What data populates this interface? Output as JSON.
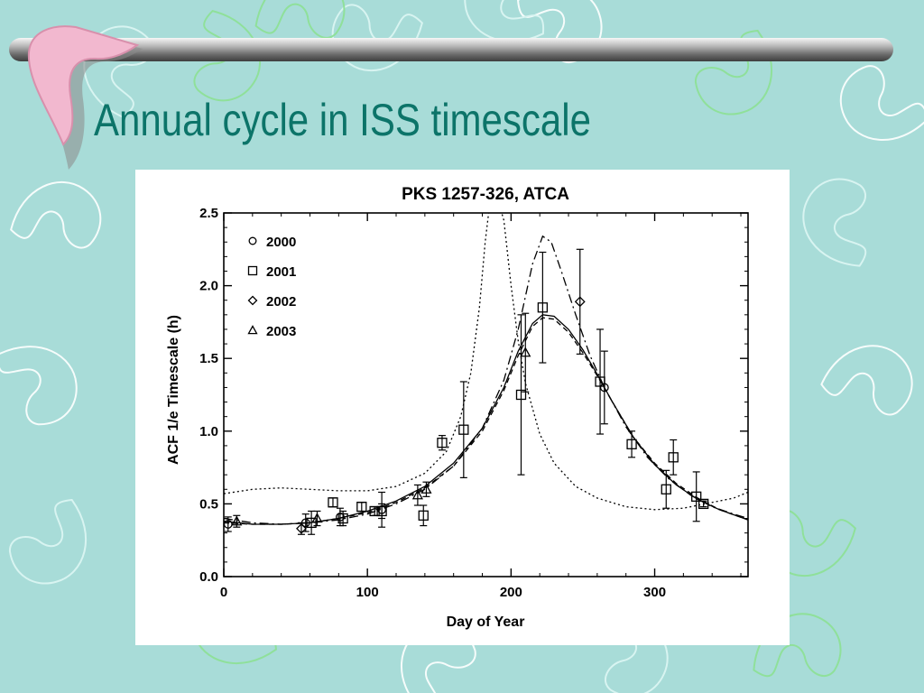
{
  "slide": {
    "title": "Annual cycle in ISS timescale"
  },
  "colors": {
    "background": "#a8dcd8",
    "title": "#0c7469",
    "accent_pink": "#f2b8cf"
  },
  "chart_data": {
    "type": "scatter",
    "title": "PKS 1257-326, ATCA",
    "xlabel": "Day of Year",
    "ylabel": "ACF 1/e Timescale (h)",
    "xlim": [
      0,
      365
    ],
    "ylim": [
      0,
      2.5
    ],
    "xticks": [
      "0",
      "100",
      "200",
      "300"
    ],
    "yticks": [
      "0.0",
      "0.5",
      "1.0",
      "1.5",
      "2.0",
      "2.5"
    ],
    "legend_position": "top-left",
    "series": [
      {
        "name": "2000",
        "marker": "circle",
        "points": [
          [
            3,
            0.36
          ],
          [
            57,
            0.37
          ],
          [
            81,
            0.41
          ],
          [
            110,
            0.46
          ],
          [
            265,
            1.3
          ]
        ],
        "err": [
          0.05,
          0.06,
          0.06,
          0.12,
          0.25
        ]
      },
      {
        "name": "2001",
        "marker": "square",
        "points": [
          [
            61,
            0.37
          ],
          [
            76,
            0.51
          ],
          [
            83,
            0.4
          ],
          [
            96,
            0.48
          ],
          [
            105,
            0.45
          ],
          [
            110,
            0.45
          ],
          [
            139,
            0.42
          ],
          [
            152,
            0.92
          ],
          [
            167,
            1.01
          ],
          [
            207,
            1.25
          ],
          [
            222,
            1.85
          ],
          [
            262,
            1.34
          ],
          [
            284,
            0.91
          ],
          [
            308,
            0.6
          ],
          [
            313,
            0.82
          ],
          [
            329,
            0.55
          ],
          [
            334,
            0.5
          ]
        ],
        "err": [
          0.08,
          0.03,
          0.05,
          0.03,
          0.03,
          0.05,
          0.07,
          0.05,
          0.33,
          0.55,
          0.38,
          0.36,
          0.09,
          0.13,
          0.12,
          0.17,
          0.02
        ]
      },
      {
        "name": "2002",
        "marker": "diamond",
        "points": [
          [
            54,
            0.33
          ],
          [
            248,
            1.89
          ]
        ],
        "err": [
          0.04,
          0.36
        ]
      },
      {
        "name": "2003",
        "marker": "triangle",
        "points": [
          [
            9,
            0.38
          ],
          [
            65,
            0.4
          ],
          [
            135,
            0.56
          ],
          [
            141,
            0.6
          ],
          [
            210,
            1.54
          ]
        ],
        "err": [
          0.04,
          0.05,
          0.07,
          0.05,
          0.27
        ]
      }
    ],
    "model_curves": [
      {
        "style": "solid",
        "points": [
          [
            0,
            0.38
          ],
          [
            20,
            0.36
          ],
          [
            40,
            0.36
          ],
          [
            60,
            0.37
          ],
          [
            80,
            0.4
          ],
          [
            100,
            0.45
          ],
          [
            120,
            0.52
          ],
          [
            140,
            0.62
          ],
          [
            160,
            0.78
          ],
          [
            180,
            1.02
          ],
          [
            195,
            1.3
          ],
          [
            205,
            1.55
          ],
          [
            215,
            1.74
          ],
          [
            222,
            1.8
          ],
          [
            230,
            1.79
          ],
          [
            240,
            1.7
          ],
          [
            250,
            1.56
          ],
          [
            260,
            1.39
          ],
          [
            270,
            1.21
          ],
          [
            285,
            0.96
          ],
          [
            300,
            0.77
          ],
          [
            315,
            0.63
          ],
          [
            330,
            0.53
          ],
          [
            345,
            0.46
          ],
          [
            365,
            0.39
          ]
        ]
      },
      {
        "style": "dash-dot",
        "points": [
          [
            0,
            0.4
          ],
          [
            20,
            0.37
          ],
          [
            40,
            0.36
          ],
          [
            60,
            0.37
          ],
          [
            80,
            0.39
          ],
          [
            100,
            0.43
          ],
          [
            120,
            0.5
          ],
          [
            140,
            0.6
          ],
          [
            160,
            0.76
          ],
          [
            180,
            1.02
          ],
          [
            195,
            1.35
          ],
          [
            205,
            1.7
          ],
          [
            215,
            2.15
          ],
          [
            222,
            2.34
          ],
          [
            228,
            2.3
          ],
          [
            235,
            2.1
          ],
          [
            245,
            1.8
          ],
          [
            255,
            1.52
          ],
          [
            265,
            1.3
          ],
          [
            280,
            1.03
          ],
          [
            295,
            0.82
          ],
          [
            310,
            0.67
          ],
          [
            325,
            0.56
          ],
          [
            340,
            0.48
          ],
          [
            355,
            0.43
          ],
          [
            365,
            0.4
          ]
        ]
      },
      {
        "style": "dashed",
        "points": [
          [
            0,
            0.37
          ],
          [
            20,
            0.36
          ],
          [
            40,
            0.36
          ],
          [
            60,
            0.37
          ],
          [
            80,
            0.4
          ],
          [
            100,
            0.44
          ],
          [
            120,
            0.51
          ],
          [
            140,
            0.61
          ],
          [
            160,
            0.76
          ],
          [
            180,
            1.0
          ],
          [
            195,
            1.28
          ],
          [
            205,
            1.52
          ],
          [
            215,
            1.72
          ],
          [
            222,
            1.78
          ],
          [
            230,
            1.77
          ],
          [
            240,
            1.68
          ],
          [
            250,
            1.54
          ],
          [
            260,
            1.38
          ],
          [
            270,
            1.21
          ],
          [
            285,
            0.96
          ],
          [
            300,
            0.78
          ],
          [
            315,
            0.64
          ],
          [
            330,
            0.54
          ],
          [
            345,
            0.46
          ],
          [
            365,
            0.39
          ]
        ]
      },
      {
        "style": "dotted",
        "points": [
          [
            0,
            0.57
          ],
          [
            20,
            0.6
          ],
          [
            40,
            0.61
          ],
          [
            60,
            0.6
          ],
          [
            80,
            0.59
          ],
          [
            100,
            0.59
          ],
          [
            120,
            0.62
          ],
          [
            140,
            0.71
          ],
          [
            155,
            0.86
          ],
          [
            165,
            1.1
          ],
          [
            172,
            1.4
          ],
          [
            178,
            1.85
          ],
          [
            182,
            2.3
          ],
          [
            185,
            2.55
          ],
          [
            192,
            2.55
          ],
          [
            195,
            2.45
          ],
          [
            200,
            2.0
          ],
          [
            205,
            1.62
          ],
          [
            210,
            1.33
          ],
          [
            220,
            0.98
          ],
          [
            230,
            0.78
          ],
          [
            245,
            0.62
          ],
          [
            260,
            0.54
          ],
          [
            280,
            0.48
          ],
          [
            300,
            0.46
          ],
          [
            320,
            0.47
          ],
          [
            340,
            0.51
          ],
          [
            355,
            0.54
          ],
          [
            365,
            0.58
          ]
        ]
      }
    ]
  }
}
